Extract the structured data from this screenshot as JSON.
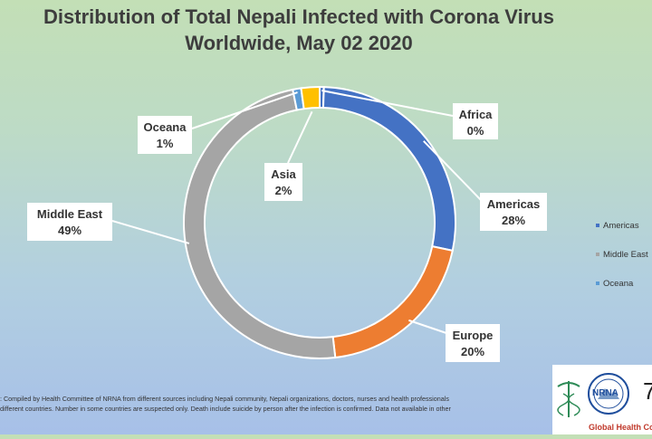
{
  "title": {
    "line1": "Distribution of Total Nepali Infected with Corona Virus",
    "line2": "Worldwide, May 02 2020"
  },
  "colors": {
    "Americas": "#4472c4",
    "Europe": "#ed7d31",
    "Middle East": "#a5a5a5",
    "Asia": "#ffc000",
    "Oceana": "#5b9bd5",
    "Africa": "#4472c4"
  },
  "chart_data": {
    "type": "pie",
    "subtype": "doughnut",
    "title": "Distribution of Total Nepali Infected with Corona Virus Worldwide, May 02 2020",
    "categories": [
      "Africa",
      "Americas",
      "Europe",
      "Middle East",
      "Oceana",
      "Asia"
    ],
    "values": [
      0,
      28,
      20,
      49,
      1,
      2
    ],
    "labels": [
      {
        "name": "Africa",
        "pct": "0%"
      },
      {
        "name": "Americas",
        "pct": "28%"
      },
      {
        "name": "Europe",
        "pct": "20%"
      },
      {
        "name": "Middle East",
        "pct": "49%"
      },
      {
        "name": "Oceana",
        "pct": "1%"
      },
      {
        "name": "Asia",
        "pct": "2%"
      }
    ],
    "legend": [
      "Americas",
      "Middle East",
      "Oceana"
    ],
    "legend_position": "right"
  },
  "legend": {
    "items": [
      "Americas",
      "Middle East",
      "Oceana"
    ]
  },
  "footnote": {
    "line1": ": Compiled by Health Committee  of NRNA from different sources including Nepali community, Nepali organizations, doctors, nurses and health professionals",
    "line2": "different countries. Number  in some countries are suspected only. Death include suicide by person after the  infection is confirmed. Data not available in other"
  },
  "logo": {
    "ring_text": "NRNA",
    "caption": "Global Health Com",
    "mark": "7"
  }
}
